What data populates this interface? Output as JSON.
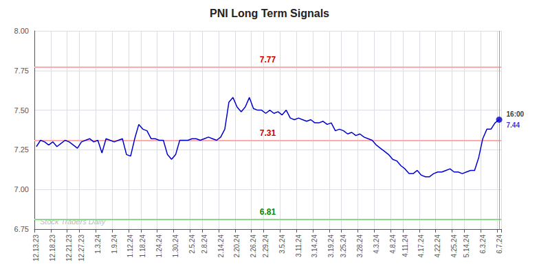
{
  "chart_data": {
    "type": "line",
    "title": "PNI Long Term Signals",
    "categories": [
      "12.13.23",
      null,
      null,
      null,
      "12.18.23",
      null,
      null,
      null,
      "12.21.23",
      null,
      null,
      "12.27.23",
      null,
      null,
      null,
      "1.3.24",
      null,
      null,
      null,
      "1.9.24",
      null,
      null,
      null,
      "1.12.24",
      null,
      null,
      "1.18.24",
      null,
      null,
      null,
      "1.24.24",
      null,
      null,
      null,
      "1.30.24",
      null,
      null,
      null,
      "2.5.24",
      null,
      null,
      "2.8.24",
      null,
      null,
      null,
      "2.14.24",
      null,
      null,
      null,
      "2.20.24",
      null,
      null,
      null,
      "2.26.24",
      null,
      null,
      "2.29.24",
      null,
      null,
      null,
      "3.5.24",
      null,
      null,
      null,
      "3.11.24",
      null,
      null,
      null,
      "3.14.24",
      null,
      null,
      null,
      "3.19.24",
      null,
      null,
      "3.25.24",
      null,
      null,
      null,
      "3.28.24",
      null,
      null,
      null,
      "4.3.24",
      null,
      null,
      null,
      "4.8.24",
      null,
      null,
      "4.11.24",
      null,
      null,
      null,
      "4.17.24",
      null,
      null,
      null,
      "4.22.24",
      null,
      null,
      null,
      "4.25.24",
      null,
      null,
      "5.14.24",
      null,
      null,
      null,
      "6.3.24",
      null,
      null,
      null,
      "6.7.24"
    ],
    "values": [
      7.27,
      7.31,
      7.3,
      7.28,
      7.3,
      7.27,
      7.29,
      7.31,
      7.3,
      7.28,
      7.26,
      7.3,
      7.31,
      7.32,
      7.3,
      7.31,
      7.23,
      7.32,
      7.31,
      7.3,
      7.31,
      7.32,
      7.22,
      7.21,
      7.32,
      7.41,
      7.38,
      7.37,
      7.32,
      7.32,
      7.31,
      7.31,
      7.22,
      7.19,
      7.22,
      7.31,
      7.31,
      7.31,
      7.32,
      7.32,
      7.31,
      7.32,
      7.33,
      7.32,
      7.31,
      7.33,
      7.38,
      7.55,
      7.58,
      7.52,
      7.49,
      7.52,
      7.58,
      7.51,
      7.5,
      7.5,
      7.48,
      7.5,
      7.48,
      7.49,
      7.47,
      7.5,
      7.45,
      7.44,
      7.45,
      7.44,
      7.43,
      7.44,
      7.42,
      7.42,
      7.43,
      7.41,
      7.42,
      7.37,
      7.38,
      7.37,
      7.35,
      7.36,
      7.34,
      7.35,
      7.33,
      7.32,
      7.31,
      7.28,
      7.26,
      7.24,
      7.22,
      7.19,
      7.18,
      7.15,
      7.13,
      7.1,
      7.1,
      7.12,
      7.09,
      7.08,
      7.08,
      7.1,
      7.11,
      7.11,
      7.12,
      7.13,
      7.11,
      7.11,
      7.1,
      7.11,
      7.12,
      7.12,
      7.2,
      7.32,
      7.38,
      7.38,
      7.42,
      7.44
    ],
    "color": "#0000cc",
    "ylim": [
      6.75,
      8.0
    ],
    "yticks": [
      6.75,
      {
        "value": 7.0,
        "label": "7.00"
      },
      7.25,
      {
        "value": 7.5,
        "label": "7.50"
      },
      7.75,
      {
        "value": 8.0,
        "label": "8.00"
      }
    ],
    "grid": true,
    "reference_lines": [
      {
        "value": 7.77,
        "label": "7.77",
        "color": "#ffaaaa",
        "label_color": "#cc0000"
      },
      {
        "value": 7.31,
        "label": "7.31",
        "color": "#ffaaaa",
        "label_color": "#cc0000"
      },
      {
        "value": 6.81,
        "label": "6.81",
        "color": "#88dd88",
        "label_color": "#008800"
      }
    ],
    "last_point": {
      "label": "16:00",
      "value_label": "7.44",
      "color": "#0000cc",
      "line_color": "#999999"
    },
    "annotations": [
      {
        "text": "Stock Traders Daily",
        "color": "#bbbbbb"
      }
    ]
  }
}
